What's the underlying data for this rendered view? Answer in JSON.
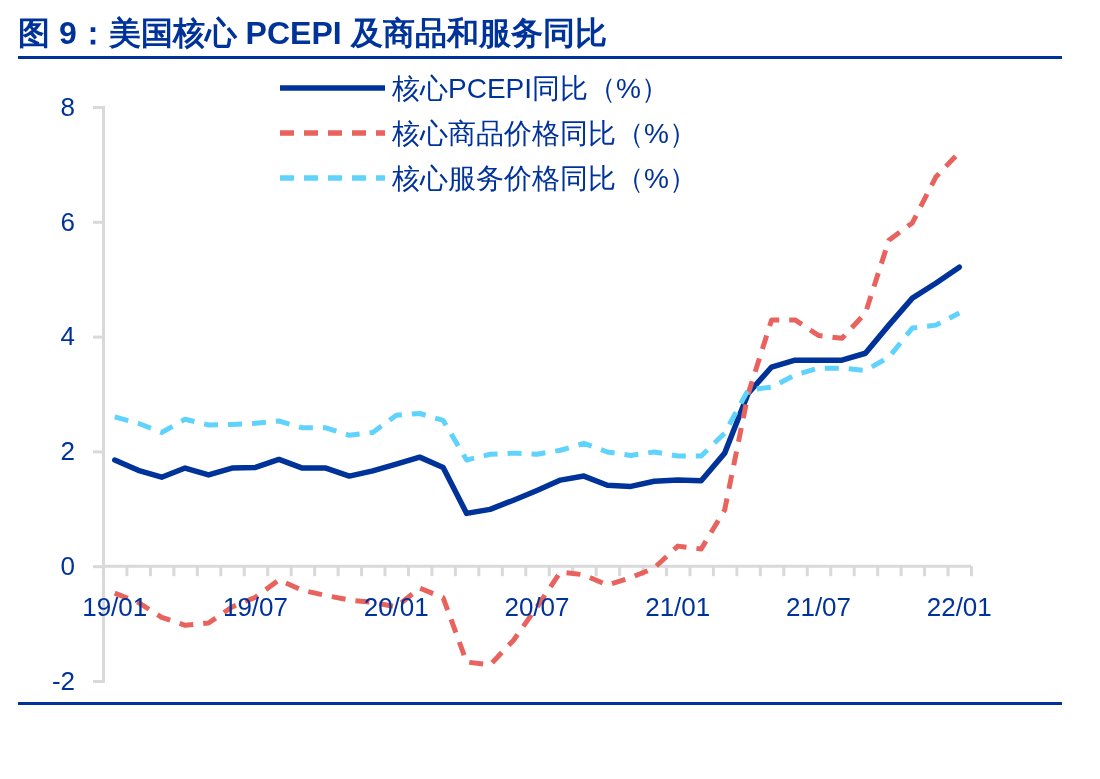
{
  "chart_data": {
    "type": "line",
    "title": "图 9：美国核心 PCEPI 及商品和服务同比",
    "categories": [
      "19/01",
      null,
      null,
      null,
      null,
      null,
      "19/07",
      null,
      null,
      null,
      null,
      null,
      "20/01",
      null,
      null,
      null,
      null,
      null,
      "20/07",
      null,
      null,
      null,
      null,
      null,
      "21/01",
      null,
      null,
      null,
      null,
      null,
      "21/07",
      null,
      null,
      null,
      null,
      null,
      "22/01"
    ],
    "series": [
      {
        "name": "核心PCEPI同比（%）",
        "color": "#003399",
        "line_style": "solid",
        "values": [
          1.85,
          1.67,
          1.55,
          1.71,
          1.59,
          1.71,
          1.72,
          1.86,
          1.71,
          1.71,
          1.57,
          1.66,
          1.78,
          1.9,
          1.72,
          0.92,
          0.99,
          1.15,
          1.32,
          1.5,
          1.57,
          1.41,
          1.39,
          1.48,
          1.5,
          1.49,
          1.97,
          3.01,
          3.47,
          3.59,
          3.59,
          3.59,
          3.71,
          4.2,
          4.67,
          4.93,
          5.21
        ]
      },
      {
        "name": "核心商品价格同比（%）",
        "color": "#e8625e",
        "line_style": "dashed",
        "values": [
          -0.47,
          -0.63,
          -0.89,
          -1.03,
          -0.99,
          -0.71,
          -0.54,
          -0.24,
          -0.42,
          -0.51,
          -0.59,
          -0.63,
          -0.71,
          -0.38,
          -0.55,
          -1.67,
          -1.72,
          -1.29,
          -0.71,
          -0.1,
          -0.15,
          -0.33,
          -0.2,
          -0.03,
          0.35,
          0.3,
          0.98,
          3.0,
          4.29,
          4.29,
          4.02,
          3.97,
          4.41,
          5.68,
          5.98,
          6.78,
          7.21
        ]
      },
      {
        "name": "核心服务价格同比（%）",
        "color": "#5fd3fb",
        "line_style": "dashed",
        "values": [
          2.6,
          2.49,
          2.33,
          2.56,
          2.46,
          2.47,
          2.49,
          2.53,
          2.41,
          2.41,
          2.28,
          2.33,
          2.63,
          2.66,
          2.54,
          1.85,
          1.95,
          1.97,
          1.95,
          2.02,
          2.14,
          1.99,
          1.93,
          1.99,
          1.92,
          1.92,
          2.32,
          3.07,
          3.12,
          3.33,
          3.45,
          3.45,
          3.41,
          3.64,
          4.15,
          4.2,
          4.41
        ]
      }
    ],
    "ylim": [
      -2,
      8
    ],
    "yticks": [
      -2,
      0,
      2,
      4,
      6,
      8
    ],
    "grid": false,
    "legend": "top",
    "marker": "none"
  }
}
